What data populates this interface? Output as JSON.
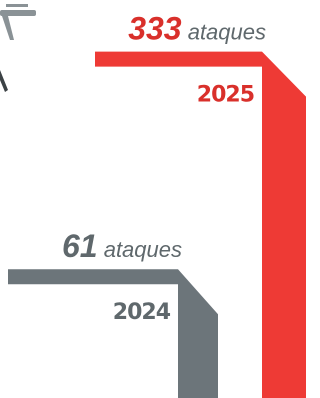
{
  "chart_data": {
    "type": "bar",
    "categories": [
      "2024",
      "2025"
    ],
    "values": [
      61,
      333
    ],
    "value_labels": [
      "61 ataques",
      "333 ataques"
    ],
    "colors": [
      "#6c757a",
      "#ee3a35"
    ],
    "label_colors": [
      "#5f686c",
      "#d9302b"
    ]
  }
}
